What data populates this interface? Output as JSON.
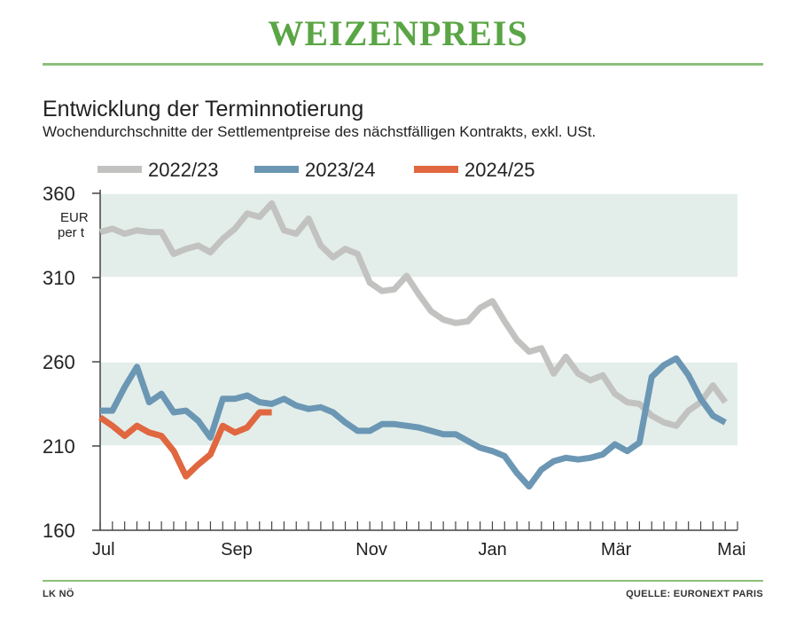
{
  "header": {
    "title": "WEIZENPREIS"
  },
  "chart_data": {
    "type": "line",
    "title": "Entwicklung der Terminnotierung",
    "subtitle": "Wochendurchschnitte der Settlementpreise des nächstfälligen Kontrakts, exkl. USt.",
    "ylabel": "EUR per t",
    "ylabel_lines": [
      "EUR",
      "per t"
    ],
    "ylim": [
      160,
      360
    ],
    "yticks": [
      160,
      210,
      260,
      310,
      360
    ],
    "bands": [
      [
        210,
        260
      ],
      [
        310,
        360
      ]
    ],
    "x_unit": "week",
    "xlim": [
      0,
      52
    ],
    "x_labels": [
      {
        "label": "Jul",
        "week": 0
      },
      {
        "label": "Sep",
        "week": 10.5
      },
      {
        "label": "Nov",
        "week": 21.5
      },
      {
        "label": "Jan",
        "week": 31.5
      },
      {
        "label": "Mär",
        "week": 41.5
      },
      {
        "label": "Mai",
        "week": 51
      }
    ],
    "legend_position": "top",
    "series": [
      {
        "name": "2022/23",
        "color": "#c2c2c0",
        "values": [
          337,
          339,
          336,
          338,
          337,
          337,
          324,
          327,
          329,
          325,
          333,
          339,
          348,
          346,
          354,
          338,
          336,
          345,
          329,
          322,
          327,
          324,
          307,
          302,
          303,
          311,
          300,
          290,
          285,
          283,
          284,
          292,
          296,
          284,
          273,
          266,
          268,
          253,
          263,
          253,
          249,
          252,
          241,
          236,
          235,
          228,
          224,
          222,
          231,
          236,
          246,
          236
        ]
      },
      {
        "name": "2023/24",
        "color": "#6b97b4",
        "values": [
          231,
          231,
          245,
          257,
          236,
          241,
          230,
          231,
          225,
          215,
          238,
          238,
          240,
          236,
          235,
          238,
          234,
          232,
          233,
          230,
          224,
          219,
          219,
          223,
          223,
          222,
          221,
          219,
          217,
          217,
          213,
          209,
          207,
          204,
          194,
          186,
          196,
          201,
          203,
          202,
          203,
          205,
          211,
          207,
          212,
          251,
          258,
          262,
          252,
          238,
          228,
          224
        ]
      },
      {
        "name": "2024/25",
        "color": "#e0673f",
        "values": [
          227,
          222,
          216,
          222,
          218,
          216,
          207,
          192,
          199,
          205,
          222,
          218,
          221,
          230,
          230
        ]
      }
    ]
  },
  "footer": {
    "left": "LK NÖ",
    "right": "QUELLE: EURONEXT PARIS"
  }
}
